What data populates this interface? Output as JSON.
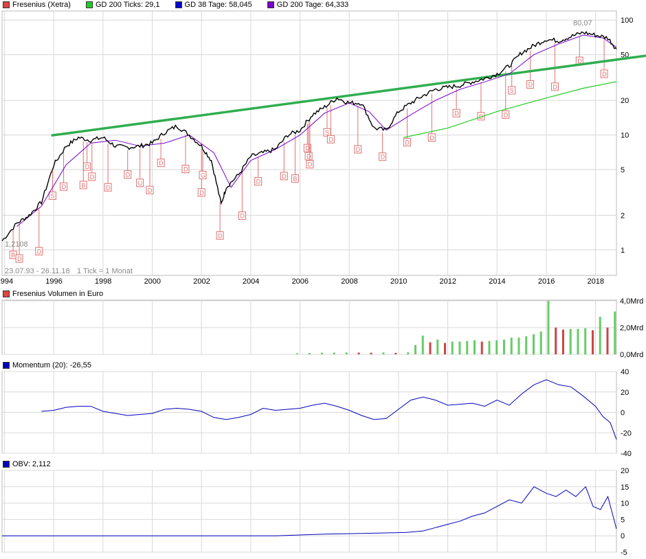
{
  "colors": {
    "price": "#000000",
    "gd200_ticks": "#22cc22",
    "gd38": "#0000cc",
    "gd200_tage": "#7a00cc",
    "trendline": "#2fae4f",
    "marker": "#e07070",
    "grid": "#d8d8d8",
    "volume_up": "#66cc66",
    "volume_down": "#cc4444",
    "indicator_line": "#0000bb"
  },
  "main_panel": {
    "legend": [
      {
        "label": "Fresenius (Xetra)",
        "color": "#dd4444"
      },
      {
        "label": "GD 200 Ticks: 29,1",
        "color": "#22cc22"
      },
      {
        "label": "GD 38 Tage: 58,045",
        "color": "#0000cc"
      },
      {
        "label": "GD 200 Tage: 64,333",
        "color": "#7a00cc"
      }
    ],
    "high_label": "80,07",
    "low_label": "1,2108",
    "range_label": "23.07.93 - 26.11.18",
    "tick_label": "1 Tick = 1 Monat"
  },
  "volume_panel": {
    "legend": {
      "label": "Fresenius Volumen in Euro",
      "color": "#dd4444"
    }
  },
  "momentum_panel": {
    "legend": {
      "label": "Momentum (20): -26,55",
      "color": "#0000bb"
    }
  },
  "obv_panel": {
    "legend": {
      "label": "OBV: 2,112",
      "color": "#0000bb"
    }
  },
  "chart_data": [
    {
      "type": "line",
      "title": "Fresenius (Xetra)",
      "scale": "log",
      "ylim": [
        0.6,
        120
      ],
      "xlim": [
        1993.9,
        2018.85
      ],
      "x_ticks": [
        "1994",
        "1996",
        "1998",
        "2000",
        "2002",
        "2004",
        "2006",
        "2008",
        "2010",
        "2012",
        "2014",
        "2016",
        "2018"
      ],
      "y_ticks": [
        "1",
        "2",
        "5",
        "10",
        "20",
        "50",
        "100"
      ],
      "grid": true,
      "series": [
        {
          "name": "Fresenius (Xetra)",
          "x": [
            1993.9,
            1994.5,
            1995.0,
            1995.5,
            1996.0,
            1996.5,
            1997.0,
            1997.5,
            1998.0,
            1998.5,
            1999.0,
            1999.5,
            2000.0,
            2000.5,
            2001.0,
            2001.5,
            2002.0,
            2002.4,
            2002.8,
            2003.0,
            2003.5,
            2004.0,
            2004.5,
            2005.0,
            2005.5,
            2006.0,
            2006.5,
            2007.0,
            2007.5,
            2008.0,
            2008.5,
            2009.0,
            2009.5,
            2010.0,
            2010.5,
            2011.0,
            2011.5,
            2012.0,
            2012.5,
            2013.0,
            2013.5,
            2014.0,
            2014.5,
            2015.0,
            2015.5,
            2016.0,
            2016.5,
            2017.0,
            2017.5,
            2018.0,
            2018.5,
            2018.85
          ],
          "values": [
            1.2,
            1.7,
            2.0,
            2.6,
            5.5,
            8.0,
            9.5,
            9.0,
            9.5,
            8.0,
            7.8,
            8.0,
            8.5,
            10.5,
            12.0,
            10.0,
            8.0,
            6.0,
            2.5,
            3.5,
            4.5,
            6.5,
            7.0,
            7.5,
            10.0,
            11.0,
            15.0,
            17.5,
            21.0,
            19.0,
            19.0,
            11.5,
            11.0,
            16.0,
            19.0,
            22.0,
            25.0,
            26.0,
            27.0,
            29.0,
            31.0,
            34.0,
            40.0,
            52.0,
            60.0,
            68.0,
            66.0,
            72.0,
            78.0,
            74.0,
            70.0,
            56.0
          ]
        },
        {
          "name": "GD 200 Ticks: 29,1",
          "x": [
            2010.2,
            2012.0,
            2014.0,
            2016.0,
            2017.5,
            2018.85
          ],
          "values": [
            9.5,
            11.5,
            16.0,
            21.0,
            25.5,
            29.1
          ]
        },
        {
          "name": "GD 38 Tage: 58,045",
          "x": [
            1994.5,
            1995.5,
            1996.5,
            1997.5,
            1998.5,
            1999.5,
            2000.5,
            2001.5,
            2002.5,
            2003.2,
            2004.0,
            2005.0,
            2006.0,
            2007.0,
            2008.0,
            2008.8,
            2009.5,
            2010.5,
            2011.5,
            2012.5,
            2013.5,
            2014.5,
            2015.5,
            2016.5,
            2017.5,
            2018.3,
            2018.85
          ],
          "values": [
            1.6,
            2.4,
            5.5,
            8.5,
            9.0,
            8.0,
            8.5,
            10.0,
            7.0,
            3.5,
            6.0,
            7.5,
            10.0,
            15.5,
            19.0,
            16.0,
            11.0,
            15.0,
            20.0,
            25.0,
            29.0,
            34.0,
            50.0,
            62.0,
            74.0,
            70.0,
            58.045
          ]
        }
      ],
      "annotations": [
        {
          "x": 1994.35,
          "label": "B"
        },
        {
          "x": 1994.6,
          "label": "D"
        },
        {
          "x": 1995.4,
          "label": "D"
        },
        {
          "x": 1995.95,
          "label": "S"
        },
        {
          "x": 1996.4,
          "label": "D"
        },
        {
          "x": 1997.2,
          "label": "B"
        },
        {
          "x": 1997.35,
          "label": "D"
        },
        {
          "x": 1997.55,
          "label": "D"
        },
        {
          "x": 1998.2,
          "label": "D"
        },
        {
          "x": 1999.0,
          "label": "D"
        },
        {
          "x": 1999.5,
          "label": "U"
        },
        {
          "x": 1999.9,
          "label": "D"
        },
        {
          "x": 2000.35,
          "label": "D"
        },
        {
          "x": 2001.35,
          "label": "D"
        },
        {
          "x": 2002.0,
          "label": "D"
        },
        {
          "x": 2002.05,
          "label": "G"
        },
        {
          "x": 2002.75,
          "label": "D"
        },
        {
          "x": 2003.65,
          "label": "D"
        },
        {
          "x": 2004.3,
          "label": "D"
        },
        {
          "x": 2005.35,
          "label": "D"
        },
        {
          "x": 2005.8,
          "label": "B"
        },
        {
          "x": 2006.3,
          "label": "D"
        },
        {
          "x": 2006.35,
          "label": "D"
        },
        {
          "x": 2006.4,
          "label": "D"
        },
        {
          "x": 2007.1,
          "label": "S"
        },
        {
          "x": 2007.25,
          "label": "D"
        },
        {
          "x": 2008.35,
          "label": "D"
        },
        {
          "x": 2009.35,
          "label": "D"
        },
        {
          "x": 2010.35,
          "label": "D"
        },
        {
          "x": 2011.35,
          "label": "D"
        },
        {
          "x": 2012.35,
          "label": "D"
        },
        {
          "x": 2013.35,
          "label": "D"
        },
        {
          "x": 2014.35,
          "label": "D"
        },
        {
          "x": 2014.6,
          "label": "S"
        },
        {
          "x": 2015.35,
          "label": "D"
        },
        {
          "x": 2016.35,
          "label": "D"
        },
        {
          "x": 2017.35,
          "label": "D"
        },
        {
          "x": 2018.35,
          "label": "D"
        }
      ]
    },
    {
      "type": "bar",
      "title": "Fresenius Volumen in Euro",
      "ylim": [
        0,
        4.0
      ],
      "y_ticks": [
        "0,0Mrd",
        "2,0Mrd",
        "4,0Mrd"
      ],
      "x": [
        2005.9,
        2006.4,
        2006.9,
        2007.4,
        2007.9,
        2008.4,
        2008.9,
        2009.4,
        2009.9,
        2010.4,
        2010.7,
        2011.0,
        2011.3,
        2011.6,
        2011.9,
        2012.2,
        2012.5,
        2012.8,
        2013.1,
        2013.4,
        2013.7,
        2014.0,
        2014.3,
        2014.6,
        2014.9,
        2015.2,
        2015.5,
        2015.8,
        2016.1,
        2016.4,
        2016.7,
        2017.0,
        2017.3,
        2017.6,
        2017.9,
        2018.2,
        2018.5,
        2018.8
      ],
      "values": [
        0.08,
        0.1,
        0.12,
        0.13,
        0.14,
        0.13,
        0.12,
        0.14,
        0.11,
        0.15,
        0.7,
        1.4,
        0.9,
        1.1,
        0.85,
        0.95,
        0.95,
        1.0,
        1.05,
        0.95,
        1.0,
        1.05,
        1.1,
        1.25,
        1.25,
        1.35,
        1.5,
        1.7,
        4.0,
        2.0,
        1.85,
        1.9,
        1.9,
        1.95,
        1.8,
        2.8,
        2.0,
        3.2
      ]
    },
    {
      "type": "line",
      "title": "Momentum (20): -26,55",
      "ylim": [
        -40,
        40
      ],
      "y_ticks": [
        "-40",
        "-20",
        "0",
        "20",
        "40"
      ],
      "series": [
        {
          "name": "Momentum (20): -26,55",
          "x": [
            1995.5,
            1996.0,
            1996.5,
            1997.0,
            1997.5,
            1998.0,
            1998.5,
            1999.0,
            1999.5,
            2000.0,
            2000.5,
            2001.0,
            2001.5,
            2002.0,
            2002.5,
            2003.0,
            2003.5,
            2004.0,
            2004.5,
            2005.0,
            2005.5,
            2006.0,
            2006.5,
            2007.0,
            2007.5,
            2008.0,
            2008.5,
            2009.0,
            2009.5,
            2010.0,
            2010.5,
            2011.0,
            2011.5,
            2012.0,
            2012.5,
            2013.0,
            2013.5,
            2014.0,
            2014.5,
            2015.0,
            2015.5,
            2016.0,
            2016.5,
            2017.0,
            2017.5,
            2018.0,
            2018.3,
            2018.6,
            2018.85
          ],
          "values": [
            1,
            2,
            5,
            6,
            6,
            1,
            -1,
            -3,
            -2,
            -1,
            3,
            4,
            3,
            1,
            -5,
            -7,
            -5,
            -2,
            4,
            2,
            3,
            4,
            7,
            9,
            6,
            2,
            -3,
            -7,
            -6,
            3,
            12,
            15,
            12,
            7,
            8,
            9,
            6,
            12,
            7,
            18,
            27,
            32,
            27,
            25,
            16,
            6,
            -4,
            -10,
            -26.55
          ]
        }
      ]
    },
    {
      "type": "line",
      "title": "OBV: 2,112",
      "ylim": [
        -5,
        20
      ],
      "y_ticks": [
        "-5",
        "0",
        "5",
        "10",
        "15",
        "20"
      ],
      "series": [
        {
          "name": "OBV: 2,112",
          "x": [
            1993.9,
            1998.0,
            2002.0,
            2005.0,
            2007.0,
            2009.0,
            2010.3,
            2011.0,
            2011.5,
            2012.0,
            2012.5,
            2013.0,
            2013.5,
            2014.0,
            2014.5,
            2015.0,
            2015.5,
            2016.0,
            2016.4,
            2016.8,
            2017.2,
            2017.6,
            2017.9,
            2018.2,
            2018.5,
            2018.85
          ],
          "values": [
            0,
            0,
            0,
            0,
            0.5,
            0.8,
            1.0,
            1.5,
            2.5,
            3.5,
            4.5,
            6,
            7,
            9,
            11,
            10,
            15,
            13,
            12,
            14,
            12,
            15,
            9,
            8,
            12,
            2.112
          ]
        }
      ]
    }
  ]
}
